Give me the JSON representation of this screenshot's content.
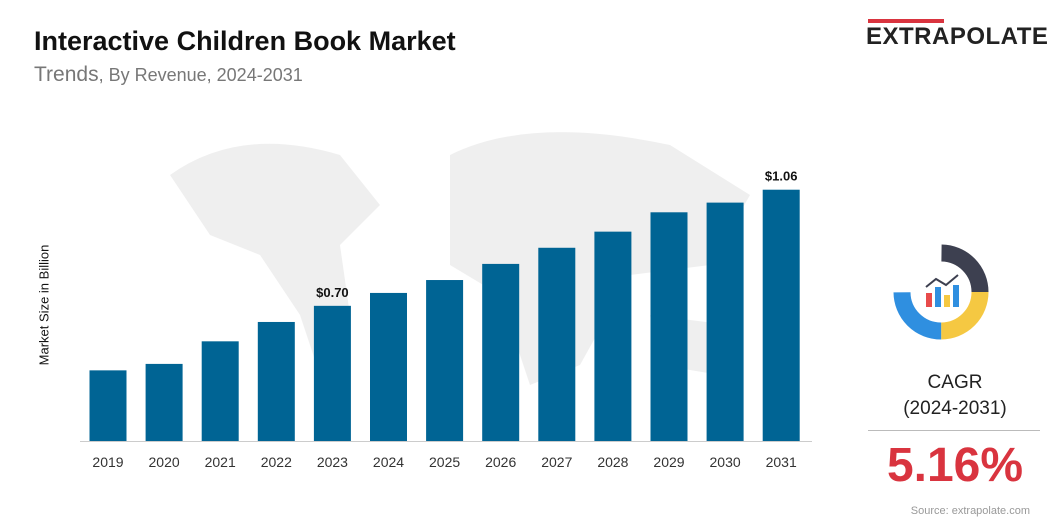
{
  "header": {
    "title": "Interactive Children Book Market",
    "subtitle_main": "Trends",
    "subtitle_rest": ", By Revenue,  2024-2031"
  },
  "logo": {
    "text": "EXTRAPOLATE"
  },
  "cagr": {
    "label_line1": "CAGR",
    "label_line2": "(2024-2031)",
    "value": "5.16%"
  },
  "source": "Source: extrapolate.com",
  "colors": {
    "bar": "#006494",
    "accent": "#d9343f"
  },
  "chart_data": {
    "type": "bar",
    "title": "Interactive Children Book Market",
    "ylabel": "Market Size in Billion",
    "xlabel": "",
    "categories": [
      "2019",
      "2020",
      "2021",
      "2022",
      "2023",
      "2024",
      "2025",
      "2026",
      "2027",
      "2028",
      "2029",
      "2030",
      "2031"
    ],
    "values": [
      0.5,
      0.52,
      0.59,
      0.65,
      0.7,
      0.74,
      0.78,
      0.83,
      0.88,
      0.93,
      0.99,
      1.02,
      1.06
    ],
    "data_labels": {
      "2023": "$0.70",
      "2031": "$1.06"
    },
    "ylim": [
      0.28,
      1.1
    ],
    "grid": false
  }
}
